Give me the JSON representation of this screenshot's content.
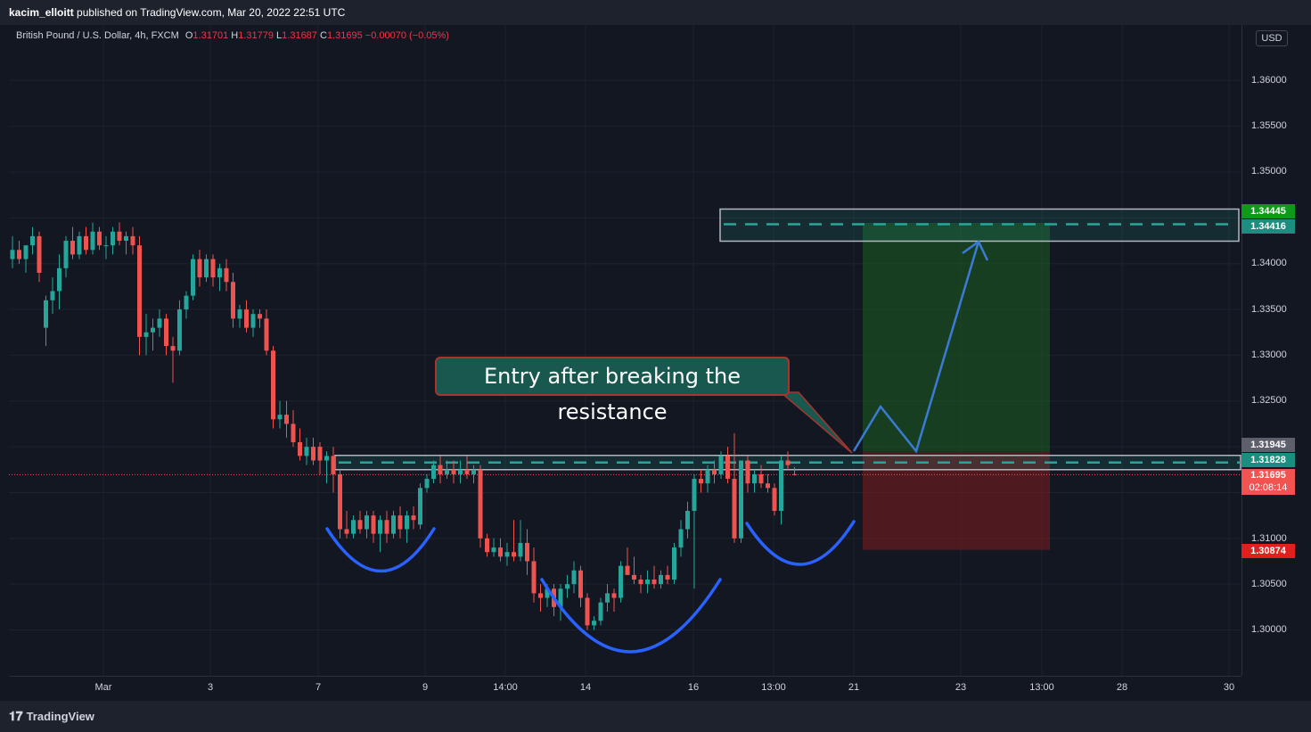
{
  "header": {
    "author": "kacim_elloitt",
    "published_text": "published on TradingView.com, Mar 20, 2022 22:51 UTC"
  },
  "legend": {
    "symbol": "British Pound / U.S. Dollar, 4h, FXCM",
    "open_label": "O",
    "open": "1.31701",
    "high_label": "H",
    "high": "1.31779",
    "low_label": "L",
    "low": "1.31687",
    "close_label": "C",
    "close": "1.31695",
    "change": "−0.00070 (−0.05%)"
  },
  "currency_button": "USD",
  "price_axis": {
    "ticks": [
      "1.36000",
      "1.35500",
      "1.35000",
      "1.34000",
      "1.33500",
      "1.33000",
      "1.32500",
      "1.31000",
      "1.30500",
      "1.30000"
    ],
    "badges": {
      "tp_upper": "1.34445",
      "tp_lower": "1.34416",
      "entry": "1.31945",
      "resistance": "1.31828",
      "last_price": "1.31695",
      "countdown": "02:08:14",
      "stop": "1.30874"
    }
  },
  "time_axis": {
    "ticks": [
      "Mar",
      "3",
      "7",
      "9",
      "14:00",
      "14",
      "16",
      "13:00",
      "21",
      "23",
      "13:00",
      "28",
      "30"
    ]
  },
  "annotation": {
    "callout_text": "Entry after breaking the resistance"
  },
  "footer": {
    "brand": "TradingView"
  },
  "colors": {
    "background": "#131722",
    "bull": "#26a69a",
    "bear": "#ef5350",
    "profit_zone": "#1b5e20",
    "loss_zone": "#7f1d1d",
    "zone_border": "#b2b5be",
    "zone_dash": "#26a69a",
    "path": "#2962ff",
    "callout_bg": "#18584f",
    "callout_border": "#a8342f"
  },
  "chart_data": {
    "type": "candlestick",
    "symbol": "GBPUSD",
    "timeframe": "4h",
    "y_range": [
      1.2955,
      1.365
    ],
    "last_close": 1.31695,
    "levels": {
      "target_zone": [
        1.34416,
        1.34445
      ],
      "resistance": 1.31828,
      "entry": 1.31945,
      "stop": 1.30874
    },
    "candles": [
      {
        "o": 1.3405,
        "h": 1.343,
        "l": 1.3395,
        "c": 1.3415
      },
      {
        "o": 1.3415,
        "h": 1.3425,
        "l": 1.34,
        "c": 1.3405
      },
      {
        "o": 1.3405,
        "h": 1.342,
        "l": 1.339,
        "c": 1.342
      },
      {
        "o": 1.342,
        "h": 1.344,
        "l": 1.341,
        "c": 1.343
      },
      {
        "o": 1.343,
        "h": 1.3435,
        "l": 1.338,
        "c": 1.339
      },
      {
        "o": 1.333,
        "h": 1.3365,
        "l": 1.331,
        "c": 1.336
      },
      {
        "o": 1.336,
        "h": 1.3385,
        "l": 1.3345,
        "c": 1.337
      },
      {
        "o": 1.337,
        "h": 1.341,
        "l": 1.335,
        "c": 1.3395
      },
      {
        "o": 1.3395,
        "h": 1.343,
        "l": 1.3385,
        "c": 1.3425
      },
      {
        "o": 1.3425,
        "h": 1.344,
        "l": 1.3405,
        "c": 1.341
      },
      {
        "o": 1.341,
        "h": 1.3435,
        "l": 1.3405,
        "c": 1.343
      },
      {
        "o": 1.343,
        "h": 1.344,
        "l": 1.341,
        "c": 1.3415
      },
      {
        "o": 1.3415,
        "h": 1.3445,
        "l": 1.341,
        "c": 1.3435
      },
      {
        "o": 1.3435,
        "h": 1.344,
        "l": 1.3415,
        "c": 1.342
      },
      {
        "o": 1.342,
        "h": 1.343,
        "l": 1.3405,
        "c": 1.342
      },
      {
        "o": 1.342,
        "h": 1.344,
        "l": 1.341,
        "c": 1.3435
      },
      {
        "o": 1.3435,
        "h": 1.3445,
        "l": 1.342,
        "c": 1.3425
      },
      {
        "o": 1.3425,
        "h": 1.3435,
        "l": 1.341,
        "c": 1.343
      },
      {
        "o": 1.343,
        "h": 1.344,
        "l": 1.341,
        "c": 1.342
      },
      {
        "o": 1.342,
        "h": 1.343,
        "l": 1.33,
        "c": 1.332
      },
      {
        "o": 1.332,
        "h": 1.3345,
        "l": 1.33,
        "c": 1.3325
      },
      {
        "o": 1.3325,
        "h": 1.334,
        "l": 1.3305,
        "c": 1.333
      },
      {
        "o": 1.333,
        "h": 1.335,
        "l": 1.332,
        "c": 1.334
      },
      {
        "o": 1.334,
        "h": 1.3345,
        "l": 1.33,
        "c": 1.331
      },
      {
        "o": 1.331,
        "h": 1.332,
        "l": 1.327,
        "c": 1.3305
      },
      {
        "o": 1.3305,
        "h": 1.336,
        "l": 1.33,
        "c": 1.335
      },
      {
        "o": 1.335,
        "h": 1.337,
        "l": 1.334,
        "c": 1.3365
      },
      {
        "o": 1.3365,
        "h": 1.341,
        "l": 1.336,
        "c": 1.3405
      },
      {
        "o": 1.3405,
        "h": 1.3415,
        "l": 1.3375,
        "c": 1.3385
      },
      {
        "o": 1.3385,
        "h": 1.341,
        "l": 1.338,
        "c": 1.3405
      },
      {
        "o": 1.3405,
        "h": 1.341,
        "l": 1.3375,
        "c": 1.3385
      },
      {
        "o": 1.3385,
        "h": 1.34,
        "l": 1.337,
        "c": 1.3395
      },
      {
        "o": 1.3395,
        "h": 1.3405,
        "l": 1.337,
        "c": 1.338
      },
      {
        "o": 1.338,
        "h": 1.339,
        "l": 1.333,
        "c": 1.334
      },
      {
        "o": 1.334,
        "h": 1.3355,
        "l": 1.333,
        "c": 1.335
      },
      {
        "o": 1.335,
        "h": 1.336,
        "l": 1.3325,
        "c": 1.333
      },
      {
        "o": 1.333,
        "h": 1.335,
        "l": 1.332,
        "c": 1.3345
      },
      {
        "o": 1.3345,
        "h": 1.335,
        "l": 1.333,
        "c": 1.334
      },
      {
        "o": 1.334,
        "h": 1.335,
        "l": 1.33,
        "c": 1.3305
      },
      {
        "o": 1.3305,
        "h": 1.331,
        "l": 1.322,
        "c": 1.323
      },
      {
        "o": 1.323,
        "h": 1.325,
        "l": 1.322,
        "c": 1.3235
      },
      {
        "o": 1.3235,
        "h": 1.325,
        "l": 1.321,
        "c": 1.3225
      },
      {
        "o": 1.3225,
        "h": 1.324,
        "l": 1.32,
        "c": 1.3205
      },
      {
        "o": 1.3205,
        "h": 1.322,
        "l": 1.3185,
        "c": 1.319
      },
      {
        "o": 1.319,
        "h": 1.321,
        "l": 1.318,
        "c": 1.32
      },
      {
        "o": 1.32,
        "h": 1.321,
        "l": 1.318,
        "c": 1.3185
      },
      {
        "o": 1.32,
        "h": 1.3205,
        "l": 1.317,
        "c": 1.3185
      },
      {
        "o": 1.3185,
        "h": 1.3195,
        "l": 1.316,
        "c": 1.319
      },
      {
        "o": 1.319,
        "h": 1.32,
        "l": 1.315,
        "c": 1.317
      },
      {
        "o": 1.317,
        "h": 1.3175,
        "l": 1.31,
        "c": 1.311
      },
      {
        "o": 1.311,
        "h": 1.313,
        "l": 1.31,
        "c": 1.3105
      },
      {
        "o": 1.3105,
        "h": 1.3125,
        "l": 1.31,
        "c": 1.312
      },
      {
        "o": 1.312,
        "h": 1.313,
        "l": 1.3105,
        "c": 1.311
      },
      {
        "o": 1.311,
        "h": 1.313,
        "l": 1.31,
        "c": 1.3125
      },
      {
        "o": 1.3125,
        "h": 1.313,
        "l": 1.3095,
        "c": 1.3105
      },
      {
        "o": 1.3105,
        "h": 1.3125,
        "l": 1.3085,
        "c": 1.312
      },
      {
        "o": 1.312,
        "h": 1.313,
        "l": 1.3095,
        "c": 1.3105
      },
      {
        "o": 1.3105,
        "h": 1.313,
        "l": 1.31,
        "c": 1.3125
      },
      {
        "o": 1.3125,
        "h": 1.3135,
        "l": 1.31,
        "c": 1.311
      },
      {
        "o": 1.311,
        "h": 1.313,
        "l": 1.3095,
        "c": 1.3125
      },
      {
        "o": 1.3125,
        "h": 1.3135,
        "l": 1.311,
        "c": 1.312
      },
      {
        "o": 1.3115,
        "h": 1.316,
        "l": 1.311,
        "c": 1.3155
      },
      {
        "o": 1.3155,
        "h": 1.317,
        "l": 1.315,
        "c": 1.3165
      },
      {
        "o": 1.3165,
        "h": 1.3185,
        "l": 1.316,
        "c": 1.318
      },
      {
        "o": 1.318,
        "h": 1.319,
        "l": 1.316,
        "c": 1.317
      },
      {
        "o": 1.317,
        "h": 1.3185,
        "l": 1.3165,
        "c": 1.3175
      },
      {
        "o": 1.3175,
        "h": 1.3185,
        "l": 1.316,
        "c": 1.317
      },
      {
        "o": 1.317,
        "h": 1.3185,
        "l": 1.316,
        "c": 1.3175
      },
      {
        "o": 1.3175,
        "h": 1.319,
        "l": 1.3165,
        "c": 1.317
      },
      {
        "o": 1.317,
        "h": 1.318,
        "l": 1.316,
        "c": 1.3175
      },
      {
        "o": 1.3175,
        "h": 1.318,
        "l": 1.309,
        "c": 1.31
      },
      {
        "o": 1.31,
        "h": 1.3105,
        "l": 1.308,
        "c": 1.3085
      },
      {
        "o": 1.3085,
        "h": 1.31,
        "l": 1.308,
        "c": 1.309
      },
      {
        "o": 1.309,
        "h": 1.31,
        "l": 1.3075,
        "c": 1.308
      },
      {
        "o": 1.308,
        "h": 1.3095,
        "l": 1.307,
        "c": 1.3085
      },
      {
        "o": 1.3085,
        "h": 1.312,
        "l": 1.3075,
        "c": 1.308
      },
      {
        "o": 1.308,
        "h": 1.312,
        "l": 1.3075,
        "c": 1.3095
      },
      {
        "o": 1.3095,
        "h": 1.311,
        "l": 1.306,
        "c": 1.3075
      },
      {
        "o": 1.3075,
        "h": 1.309,
        "l": 1.303,
        "c": 1.304
      },
      {
        "o": 1.304,
        "h": 1.305,
        "l": 1.302,
        "c": 1.3035
      },
      {
        "o": 1.3035,
        "h": 1.305,
        "l": 1.3025,
        "c": 1.3045
      },
      {
        "o": 1.3045,
        "h": 1.305,
        "l": 1.3015,
        "c": 1.3025
      },
      {
        "o": 1.3025,
        "h": 1.305,
        "l": 1.301,
        "c": 1.3045
      },
      {
        "o": 1.3045,
        "h": 1.306,
        "l": 1.3035,
        "c": 1.305
      },
      {
        "o": 1.305,
        "h": 1.3075,
        "l": 1.304,
        "c": 1.3065
      },
      {
        "o": 1.3065,
        "h": 1.307,
        "l": 1.3025,
        "c": 1.3035
      },
      {
        "o": 1.3035,
        "h": 1.304,
        "l": 1.3,
        "c": 1.3005
      },
      {
        "o": 1.3005,
        "h": 1.3015,
        "l": 1.3,
        "c": 1.301
      },
      {
        "o": 1.301,
        "h": 1.3035,
        "l": 1.3005,
        "c": 1.303
      },
      {
        "o": 1.303,
        "h": 1.305,
        "l": 1.302,
        "c": 1.304
      },
      {
        "o": 1.304,
        "h": 1.3045,
        "l": 1.302,
        "c": 1.3035
      },
      {
        "o": 1.3035,
        "h": 1.3075,
        "l": 1.303,
        "c": 1.307
      },
      {
        "o": 1.307,
        "h": 1.309,
        "l": 1.306,
        "c": 1.306
      },
      {
        "o": 1.306,
        "h": 1.308,
        "l": 1.305,
        "c": 1.3055
      },
      {
        "o": 1.3055,
        "h": 1.306,
        "l": 1.304,
        "c": 1.305
      },
      {
        "o": 1.305,
        "h": 1.3065,
        "l": 1.304,
        "c": 1.3055
      },
      {
        "o": 1.3055,
        "h": 1.307,
        "l": 1.3045,
        "c": 1.305
      },
      {
        "o": 1.305,
        "h": 1.3065,
        "l": 1.3045,
        "c": 1.306
      },
      {
        "o": 1.306,
        "h": 1.307,
        "l": 1.305,
        "c": 1.3055
      },
      {
        "o": 1.3055,
        "h": 1.3095,
        "l": 1.305,
        "c": 1.309
      },
      {
        "o": 1.309,
        "h": 1.312,
        "l": 1.308,
        "c": 1.311
      },
      {
        "o": 1.311,
        "h": 1.314,
        "l": 1.31,
        "c": 1.313
      },
      {
        "o": 1.313,
        "h": 1.317,
        "l": 1.3045,
        "c": 1.3165
      },
      {
        "o": 1.3165,
        "h": 1.3175,
        "l": 1.315,
        "c": 1.316
      },
      {
        "o": 1.316,
        "h": 1.318,
        "l": 1.315,
        "c": 1.3175
      },
      {
        "o": 1.3175,
        "h": 1.3185,
        "l": 1.316,
        "c": 1.317
      },
      {
        "o": 1.317,
        "h": 1.3195,
        "l": 1.3165,
        "c": 1.319
      },
      {
        "o": 1.319,
        "h": 1.32,
        "l": 1.316,
        "c": 1.3165
      },
      {
        "o": 1.3165,
        "h": 1.3215,
        "l": 1.3095,
        "c": 1.31
      },
      {
        "o": 1.31,
        "h": 1.3185,
        "l": 1.3095,
        "c": 1.3185
      },
      {
        "o": 1.3185,
        "h": 1.319,
        "l": 1.315,
        "c": 1.316
      },
      {
        "o": 1.316,
        "h": 1.3175,
        "l": 1.315,
        "c": 1.317
      },
      {
        "o": 1.317,
        "h": 1.318,
        "l": 1.3155,
        "c": 1.316
      },
      {
        "o": 1.316,
        "h": 1.317,
        "l": 1.315,
        "c": 1.3155
      },
      {
        "o": 1.3155,
        "h": 1.316,
        "l": 1.3125,
        "c": 1.313
      },
      {
        "o": 1.313,
        "h": 1.319,
        "l": 1.3115,
        "c": 1.3185
      },
      {
        "o": 1.3185,
        "h": 1.3195,
        "l": 1.3175,
        "c": 1.318
      },
      {
        "o": 1.31701,
        "h": 1.31779,
        "l": 1.31687,
        "c": 1.31695
      }
    ]
  }
}
